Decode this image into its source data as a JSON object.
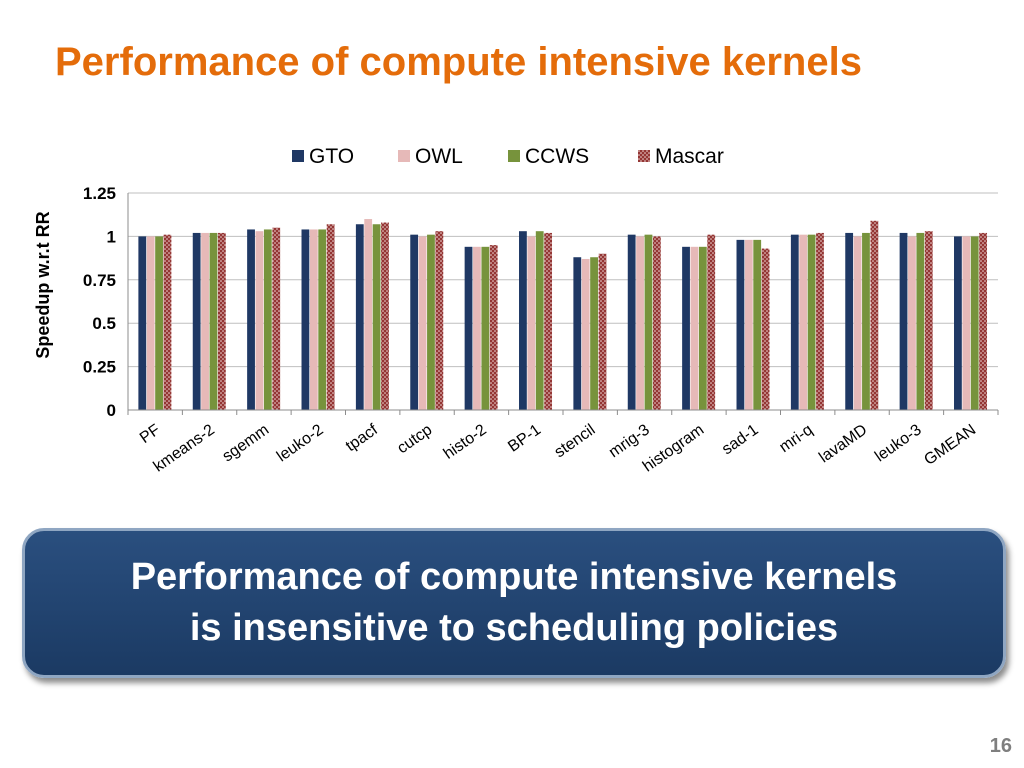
{
  "slide": {
    "title": "Performance of compute intensive kernels",
    "callout_line1": "Performance of compute intensive kernels",
    "callout_line2": "is insensitive to scheduling policies",
    "page_number": "16"
  },
  "chart_data": {
    "type": "bar",
    "title": "",
    "xlabel": "",
    "ylabel": "Speedup w.r.t RR",
    "ylim": [
      0,
      1.25
    ],
    "yticks": [
      0,
      0.25,
      0.5,
      0.75,
      1,
      1.25
    ],
    "ytick_labels": [
      "0",
      "0.25",
      "0.5",
      "0.75",
      "1",
      "1.25"
    ],
    "grid": true,
    "legend_position": "top-center",
    "categories": [
      "PF",
      "kmeans-2",
      "sgemm",
      "leuko-2",
      "tpacf",
      "cutcp",
      "histo-2",
      "BP-1",
      "stencil",
      "mrig-3",
      "histogram",
      "sad-1",
      "mri-q",
      "lavaMD",
      "leuko-3",
      "GMEAN"
    ],
    "series": [
      {
        "name": "GTO",
        "color": "#1F3864",
        "pattern": "solid",
        "values": [
          1.0,
          1.02,
          1.04,
          1.04,
          1.07,
          1.01,
          0.94,
          1.03,
          0.88,
          1.01,
          0.94,
          0.98,
          1.01,
          1.02,
          1.02,
          1.0
        ]
      },
      {
        "name": "OWL",
        "color": "#E6B9B8",
        "pattern": "solid",
        "values": [
          1.0,
          1.02,
          1.03,
          1.04,
          1.1,
          1.0,
          0.94,
          1.0,
          0.87,
          1.0,
          0.94,
          0.98,
          1.01,
          1.0,
          1.0,
          1.0
        ]
      },
      {
        "name": "CCWS",
        "color": "#77933C",
        "pattern": "solid",
        "values": [
          1.0,
          1.02,
          1.04,
          1.04,
          1.07,
          1.01,
          0.94,
          1.03,
          0.88,
          1.01,
          0.94,
          0.98,
          1.01,
          1.02,
          1.02,
          1.0
        ]
      },
      {
        "name": "Mascar",
        "color": "#943634",
        "pattern": "dotted",
        "values": [
          1.01,
          1.02,
          1.05,
          1.07,
          1.08,
          1.03,
          0.95,
          1.02,
          0.9,
          1.0,
          1.01,
          0.93,
          1.02,
          1.09,
          1.03,
          1.02
        ]
      }
    ]
  }
}
